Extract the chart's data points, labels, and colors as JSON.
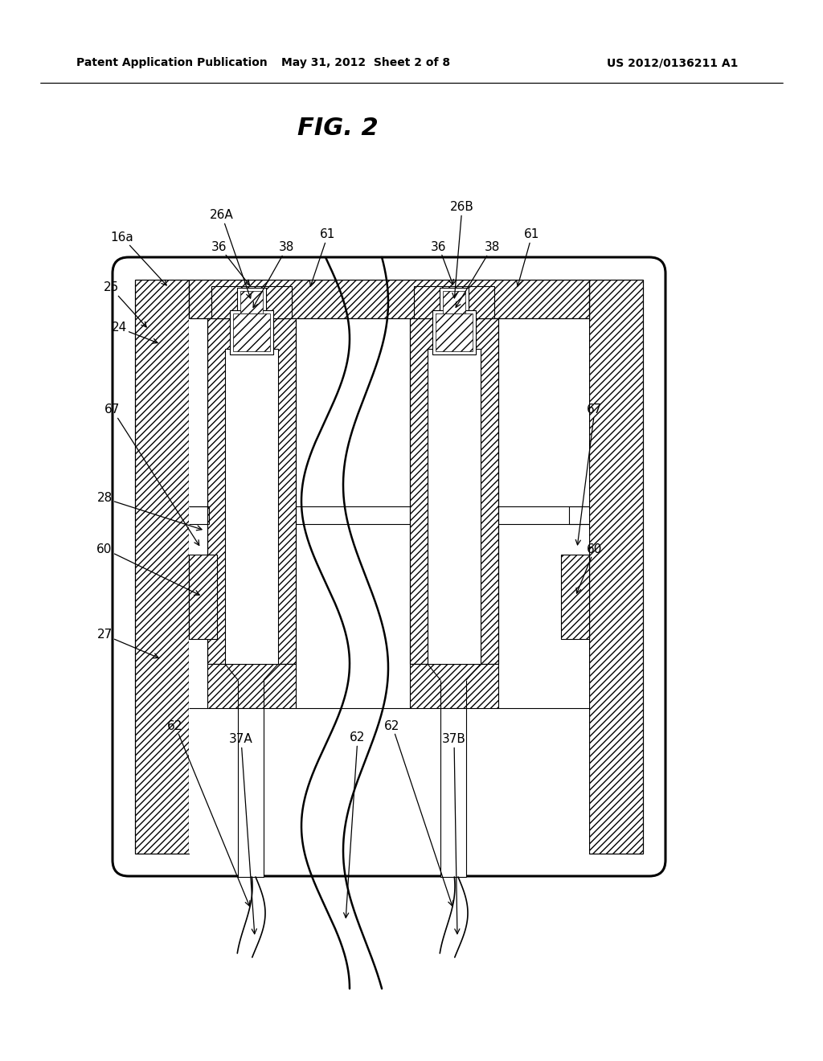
{
  "header_left": "Patent Application Publication",
  "header_center": "May 31, 2012  Sheet 2 of 8",
  "header_right": "US 2012/0136211 A1",
  "figure_title": "FIG. 2",
  "bg_color": "#ffffff"
}
